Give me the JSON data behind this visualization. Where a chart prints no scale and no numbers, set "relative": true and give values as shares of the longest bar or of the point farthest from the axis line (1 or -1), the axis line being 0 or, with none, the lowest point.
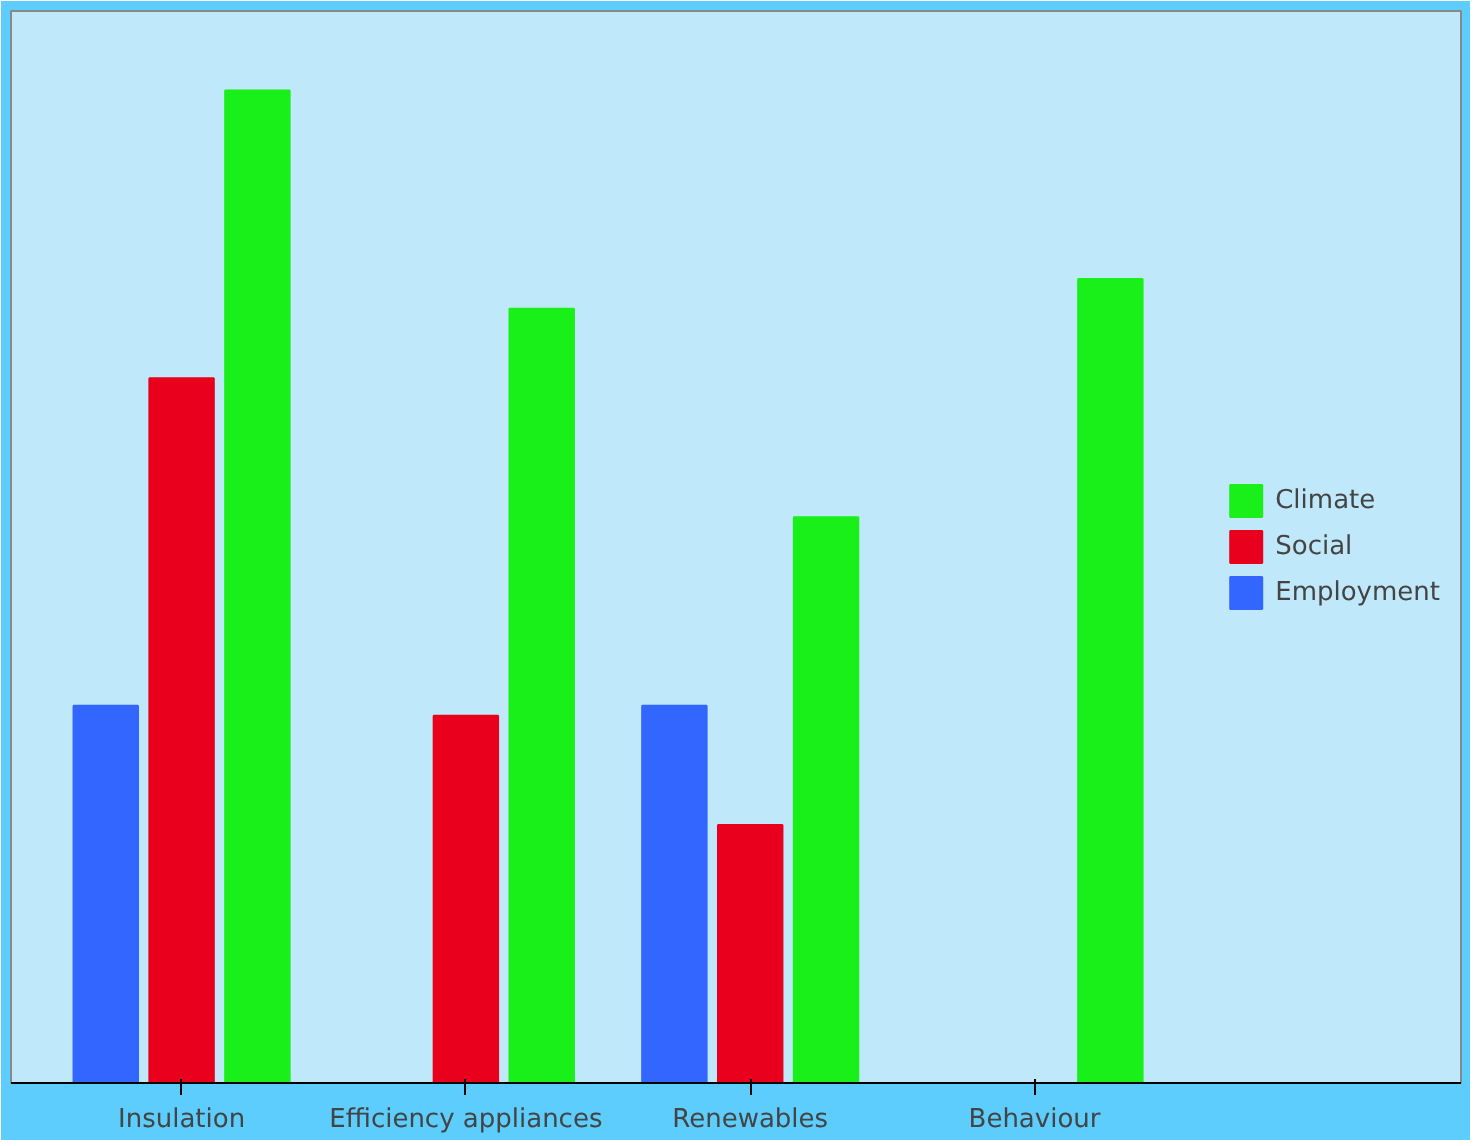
{
  "chart_data": {
    "type": "bar",
    "relative": true,
    "categories": [
      "Insulation",
      "Efficiency appliances",
      "Renewables",
      "Behaviour"
    ],
    "series": [
      {
        "name": "Employment",
        "color": "#3366ff",
        "values": [
          0.38,
          0,
          0.38,
          0
        ]
      },
      {
        "name": "Social",
        "color": "#e8001c",
        "values": [
          0.71,
          0.37,
          0.26,
          0
        ]
      },
      {
        "name": "Climate",
        "color": "#19f019",
        "values": [
          1,
          0.78,
          0.57,
          0.81
        ]
      }
    ],
    "legend": "right"
  }
}
